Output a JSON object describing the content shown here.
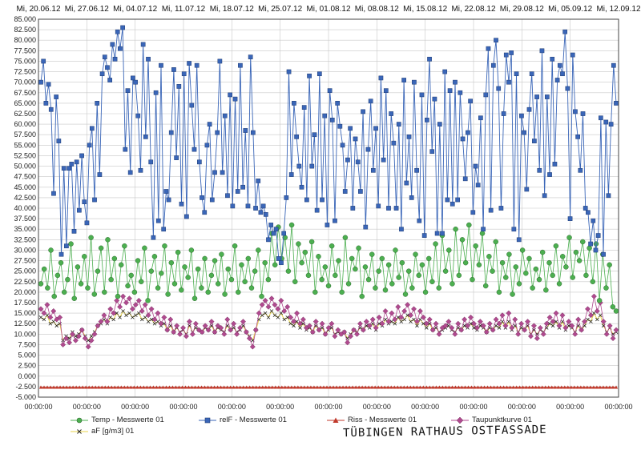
{
  "chart_data": {
    "type": "line",
    "x_axis_top_labels": [
      "Mi, 20.06.12",
      "Mi, 27.06.12",
      "Mi, 04.07.12",
      "Mi, 11.07.12",
      "Mi, 18.07.12",
      "Mi, 25.07.12",
      "Mi, 01.08.12",
      "Mi, 08.08.12",
      "Mi, 15.08.12",
      "Mi, 22.08.12",
      "Mi, 29.08.12",
      "Mi, 05.09.12",
      "Mi, 12.09.12"
    ],
    "x_axis_bottom_labels": [
      "00:00:00",
      "00:00:00",
      "00:00:00",
      "00:00:00",
      "00:00:00",
      "00:00:00",
      "00:00:00",
      "00:00:00",
      "00:00:00",
      "00:00:00",
      "00:00:00",
      "00:00:00",
      "00:00:00"
    ],
    "y_tick_labels": [
      "85.000",
      "82.500",
      "80.000",
      "77.500",
      "75.000",
      "72.500",
      "70.000",
      "67.500",
      "65.000",
      "62.500",
      "60.000",
      "57.500",
      "55.000",
      "52.500",
      "50.000",
      "47.500",
      "45.000",
      "42.500",
      "40.000",
      "37.500",
      "35.000",
      "32.500",
      "30.000",
      "27.500",
      "25.000",
      "22.500",
      "20.000",
      "17.500",
      "15.000",
      "12.500",
      "10.000",
      "7.500",
      "5.000",
      "2.500",
      "0.000",
      "-2.500",
      "-5.000"
    ],
    "ylim": [
      -5,
      85
    ],
    "grid": true,
    "legend_placement": "bottom",
    "colors": {
      "temp": "#4caf50",
      "relf": "#3a66b8",
      "riss": "#c0392b",
      "taupunkt": "#b04a8f",
      "af": "#e8d34a"
    },
    "series": [
      {
        "name": "Temp - Messwerte 01",
        "key": "temp",
        "marker": "circle",
        "values": [
          22,
          25.5,
          21,
          30,
          19,
          24,
          27,
          20,
          23,
          31.5,
          18.5,
          26,
          22,
          28.5,
          21,
          33,
          19.5,
          25,
          30.5,
          20,
          32.5,
          23,
          28,
          19,
          26.5,
          31,
          21.5,
          24,
          20,
          27.5,
          22.5,
          30.5,
          18,
          25,
          28.5,
          21,
          24.5,
          31,
          19.5,
          27,
          22,
          29.5,
          20.5,
          26,
          23.5,
          30,
          18.5,
          25.5,
          21,
          28,
          20,
          24,
          27.5,
          22,
          29,
          19.5,
          25.5,
          23,
          31,
          20,
          26.5,
          22.5,
          28,
          21,
          25,
          30,
          19,
          27,
          23,
          34,
          26.5,
          35.5,
          28,
          33,
          25,
          36,
          22.5,
          31.5,
          27,
          29.5,
          24,
          32,
          20,
          28.5,
          23,
          26,
          21.5,
          31,
          24,
          27.5,
          20,
          33,
          22,
          28,
          25.5,
          30.5,
          19,
          26,
          23,
          29,
          21,
          25,
          28,
          20.5,
          26.5,
          22,
          30,
          23.5,
          27,
          19.5,
          25,
          21,
          29,
          24,
          26.5,
          20,
          28,
          22.5,
          31.5,
          21,
          33.5,
          25,
          30,
          22,
          35,
          24,
          32.5,
          27,
          36,
          23,
          31,
          26.5,
          34,
          21.5,
          28.5,
          25,
          32,
          20,
          27,
          23.5,
          29,
          19.5,
          26,
          22,
          30,
          24.5,
          28,
          21,
          25.5,
          23,
          29.5,
          20.5,
          27,
          24,
          31,
          22,
          28.5,
          26,
          33,
          23.5,
          29.5,
          27.5,
          32,
          24,
          30.5,
          22.5,
          31.5,
          18,
          29,
          21,
          26.5,
          16.5,
          15.5
        ],
        "y_range_observed": [
          15.5,
          36
        ]
      },
      {
        "name": "relF - Messwerte 01",
        "key": "relf",
        "marker": "square",
        "values": [
          70,
          75,
          65,
          69.5,
          63.5,
          43.5,
          66.5,
          56,
          29,
          49.5,
          31,
          49.5,
          50.5,
          34.5,
          51,
          39.5,
          52.5,
          41.5,
          36.5,
          55,
          59,
          42,
          65,
          48,
          72,
          76,
          73.5,
          70.5,
          79,
          75.5,
          82,
          78,
          83,
          54,
          68,
          48.5,
          71,
          70,
          62,
          49,
          79,
          57,
          75.5,
          51,
          33,
          67.5,
          37,
          74,
          35,
          44,
          42,
          58,
          73,
          52,
          69,
          41,
          72,
          38,
          74.5,
          64.5,
          54,
          74,
          51,
          42.5,
          39,
          55,
          60,
          42,
          48.5,
          58,
          75,
          48.5,
          62,
          43,
          67,
          40.5,
          66,
          44,
          74,
          45,
          58.5,
          40.5,
          76,
          58,
          40,
          46.5,
          39,
          40.5,
          38.5,
          32.5,
          36,
          34,
          35,
          28,
          27,
          34,
          42.5,
          72.5,
          48,
          65,
          57,
          50,
          45,
          64,
          42,
          71.5,
          50,
          57.5,
          39.5,
          72,
          42,
          62,
          36,
          68,
          61,
          37,
          65,
          59.5,
          55,
          44,
          51.5,
          59,
          40,
          56.5,
          51,
          44,
          63,
          35.5,
          54,
          65.5,
          49,
          59,
          40.5,
          71,
          51.5,
          68,
          40,
          62.5,
          55.5,
          40,
          60,
          35,
          70.5,
          46,
          57,
          42.5,
          70,
          49,
          37,
          67,
          33.5,
          61,
          75.5,
          53.5,
          66,
          34,
          60,
          34,
          72.5,
          42,
          68,
          41,
          70,
          42,
          67.5,
          56.5,
          47,
          58,
          65.5,
          39,
          50,
          45.5,
          61.5,
          35,
          67,
          78,
          39.5,
          74,
          80,
          68.5,
          40,
          62.5,
          76.5,
          70,
          77,
          35,
          72,
          32.5,
          62,
          58,
          44.5,
          63.5,
          72,
          56,
          66.5,
          49,
          77.5,
          43,
          66.5,
          48,
          75.5,
          50.5,
          70.5,
          74,
          72,
          82,
          68.5,
          37.5,
          76.5,
          63,
          57,
          49,
          62.5,
          40,
          39,
          31.5,
          37,
          30,
          33.5,
          61.5,
          29,
          60.5,
          43,
          60,
          74,
          65
        ],
        "y_range_observed": [
          27,
          83
        ]
      },
      {
        "name": "Riss - Messwerte 01",
        "key": "riss",
        "marker": "triangle",
        "values_constant": -2.7,
        "y_range_observed": [
          -2.8,
          -2.6
        ]
      },
      {
        "name": "Taupunktkurve 01",
        "key": "taupunkt",
        "marker": "diamond",
        "values": [
          16,
          15,
          17,
          14,
          15.5,
          13.5,
          14,
          7.5,
          9,
          8,
          10,
          8.5,
          9.5,
          11,
          9,
          7,
          8.5,
          10,
          12,
          13,
          14.5,
          13,
          16,
          15,
          18,
          16.5,
          19,
          17.5,
          18.5,
          16,
          17,
          18,
          15.5,
          17,
          14.5,
          16,
          13.5,
          15,
          12.5,
          14,
          11,
          13.5,
          10.5,
          12,
          10,
          11.5,
          9.5,
          13,
          10,
          12.5,
          11,
          10.5,
          12,
          11,
          13,
          10.5,
          12,
          11.5,
          10,
          13.5,
          11,
          12.5,
          10,
          11.5,
          13,
          10.5,
          9,
          7,
          11,
          15,
          17,
          18,
          16.5,
          18.5,
          17,
          16,
          18,
          15.5,
          16.5,
          14,
          13,
          15,
          12.5,
          13.5,
          11.5,
          12,
          10.5,
          13,
          11,
          12.5,
          10,
          11.5,
          12.5,
          9.5,
          11,
          10,
          10.5,
          8,
          9.5,
          11,
          10,
          12.5,
          11,
          13,
          12,
          13.5,
          11.5,
          14,
          12.5,
          15.5,
          13,
          15,
          13.5,
          16.5,
          14,
          15.5,
          17,
          14.5,
          16,
          13,
          15.5,
          14,
          12.5,
          13.5,
          11,
          12.5,
          10,
          11.5,
          12,
          13,
          11.5,
          10,
          12.5,
          11,
          13.5,
          12,
          14,
          12.5,
          11.5,
          13,
          12,
          10.5,
          12.5,
          11,
          13.5,
          12.5,
          14.5,
          12,
          15,
          11.5,
          13.5,
          10,
          12.5,
          11,
          13,
          9.5,
          12,
          9,
          11.5,
          10,
          12.5,
          14,
          13,
          15,
          12,
          14.5,
          11.5,
          13,
          12,
          10,
          13.5,
          11,
          13,
          16,
          14.5,
          19,
          15.5,
          17.5,
          13,
          10,
          12,
          9,
          11
        ],
        "y_range_observed": [
          6.5,
          19
        ]
      },
      {
        "name": "aF [g/m3] 01",
        "key": "af",
        "marker": "x",
        "values": [
          14,
          13.5,
          14.5,
          12.5,
          13,
          12,
          12.5,
          8.5,
          9.5,
          9,
          10.5,
          9.5,
          10,
          11,
          9.5,
          8.5,
          9.5,
          10.5,
          12,
          12.5,
          13.5,
          12.5,
          14,
          13.5,
          15,
          14,
          15.5,
          14.5,
          15,
          14,
          14.5,
          15,
          13.5,
          14,
          13,
          13.5,
          12.5,
          13,
          12,
          12.5,
          11,
          12,
          10.5,
          11.5,
          10.5,
          11,
          10,
          12,
          10.5,
          11.5,
          11,
          10.5,
          11.5,
          11,
          12,
          10.5,
          11.5,
          11,
          10.5,
          12,
          11,
          11.5,
          10.5,
          11,
          12,
          10.5,
          9.5,
          8.5,
          11,
          13.5,
          14.5,
          15,
          14,
          15.5,
          14.5,
          14,
          15,
          13.5,
          14,
          12.5,
          12,
          13,
          11.5,
          12.5,
          11,
          11.5,
          10.5,
          12,
          11,
          11.5,
          10,
          11,
          11.5,
          10,
          10.5,
          10,
          10.5,
          9,
          10,
          11,
          10.5,
          11.5,
          11,
          12,
          11.5,
          12.5,
          11,
          12.5,
          12,
          13.5,
          12.5,
          13,
          12.5,
          14,
          13,
          13.5,
          14.5,
          13,
          13.5,
          12,
          13.5,
          12.5,
          11.5,
          12.5,
          11,
          11.5,
          10.5,
          11,
          11.5,
          12,
          11,
          10.5,
          11.5,
          11,
          12,
          11.5,
          12.5,
          11.5,
          11,
          12,
          11.5,
          10.5,
          11.5,
          11,
          12,
          11.5,
          13,
          11.5,
          13,
          11,
          12,
          10.5,
          11.5,
          11,
          12,
          10,
          11,
          10,
          11,
          10.5,
          11.5,
          12.5,
          12,
          13,
          11.5,
          13,
          11,
          12,
          11.5,
          10.5,
          12,
          11,
          12,
          13.5,
          13,
          15,
          13.5,
          14.5,
          12,
          10.5,
          11.5,
          10,
          10.5
        ],
        "y_range_observed": [
          8.5,
          15.5
        ]
      }
    ]
  },
  "legend": {
    "items": [
      {
        "label": "Temp - Messwerte 01",
        "key": "temp"
      },
      {
        "label": "relF - Messwerte 01",
        "key": "relf"
      },
      {
        "label": "Riss - Messwerte 01",
        "key": "riss"
      },
      {
        "label": "Taupunktkurve 01",
        "key": "taupunkt"
      },
      {
        "label": "aF [g/m3] 01",
        "key": "af"
      }
    ]
  },
  "annotation": {
    "handwritten_text": "TÜBINGEN RATHAUS OSTFASSADE"
  }
}
